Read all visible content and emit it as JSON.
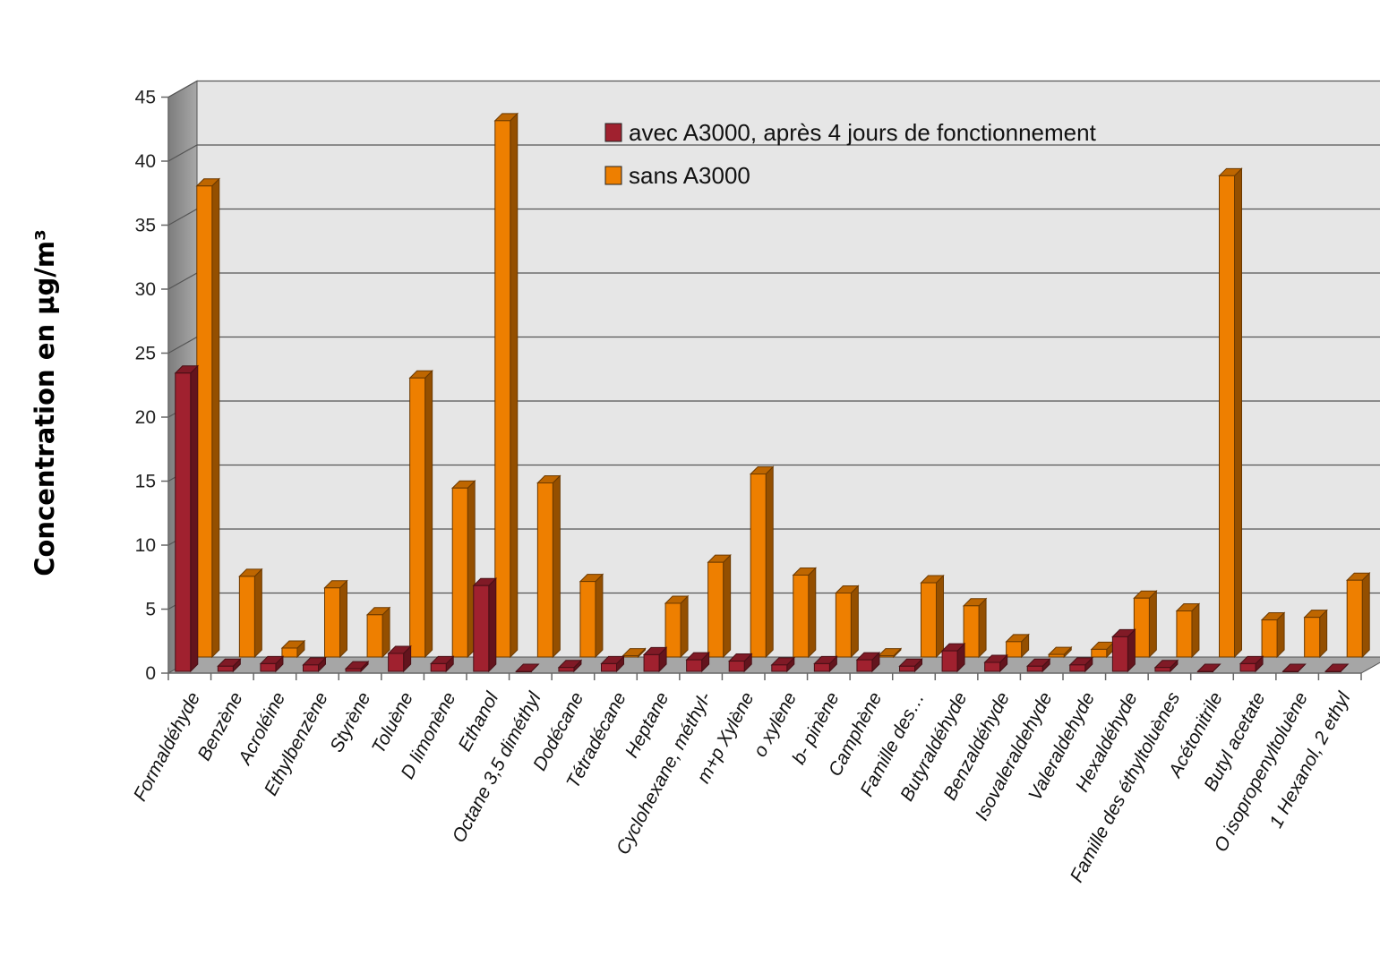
{
  "chart_data": {
    "type": "bar",
    "ylabel": "Concentration en µg/m³",
    "ylim": [
      0,
      45
    ],
    "yticks": [
      0,
      5,
      10,
      15,
      20,
      25,
      30,
      35,
      40,
      45
    ],
    "grid": true,
    "legend_position": "top-center",
    "categories": [
      "Formaldéhyde",
      "Benzène",
      "Acroléine",
      "Ethylbenzène",
      "Styrène",
      "Toluène",
      "D limonène",
      "Ethanol",
      "Octane 3,5 diméthyl",
      "Dodécane",
      "Tétradécane",
      "Heptane",
      "Cyclohexane, méthyl-",
      "m+p Xylène",
      "o xylène",
      "b- pinène",
      "Camphène",
      "Famille des…",
      "Butyraldéhyde",
      "Benzaldéhyde",
      "Isovaleraldehyde",
      "Valeraldehyde",
      "Hexaldéhyde",
      "Famille des éthyltoluènes",
      "Acétonitrile",
      "Butyl acetate",
      "O isopropenyltoluène",
      "1 Hexanol, 2 ethyl"
    ],
    "series": [
      {
        "name": "avec A3000, après 4 jours de fonctionnement",
        "color": "#a0212f",
        "values": [
          23.3,
          0.4,
          0.6,
          0.5,
          0.2,
          1.4,
          0.6,
          6.7,
          0.0,
          0.3,
          0.6,
          1.3,
          0.9,
          0.8,
          0.5,
          0.6,
          0.9,
          0.4,
          1.6,
          0.7,
          0.4,
          0.5,
          2.7,
          0.3,
          0.0,
          0.6,
          0.0,
          0.0
        ]
      },
      {
        "name": "sans A3000",
        "color": "#ee7f00",
        "values": [
          36.8,
          6.3,
          0.7,
          5.4,
          3.3,
          21.8,
          13.2,
          41.9,
          13.6,
          5.9,
          0.1,
          4.2,
          7.4,
          14.3,
          6.4,
          5.0,
          0.1,
          5.8,
          4.0,
          1.2,
          0.2,
          0.6,
          4.6,
          3.6,
          37.6,
          2.9,
          3.1,
          6.0
        ]
      }
    ]
  }
}
